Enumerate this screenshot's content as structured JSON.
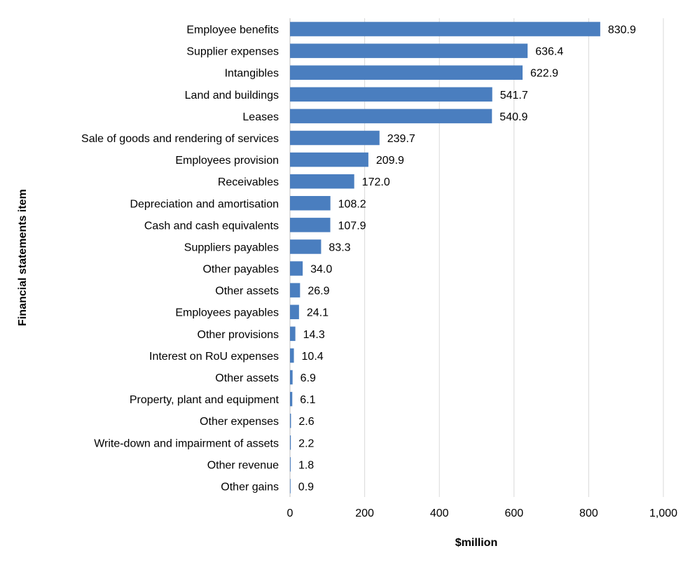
{
  "chart_data": {
    "type": "bar",
    "orientation": "horizontal",
    "title": "",
    "xlabel": "$million",
    "ylabel": "Financial statements item",
    "xlim": [
      0,
      1000
    ],
    "xticks": [
      0,
      200,
      400,
      600,
      800,
      1000
    ],
    "xtick_labels": [
      "0",
      "200",
      "400",
      "600",
      "800",
      "1,000"
    ],
    "grid": true,
    "bar_color": "#4a7ebf",
    "categories": [
      "Employee benefits",
      "Supplier expenses",
      "Intangibles",
      "Land and buildings",
      "Leases",
      "Sale of goods and rendering of services",
      "Employees provision",
      "Receivables",
      "Depreciation and amortisation",
      "Cash and cash equivalents",
      "Suppliers payables",
      "Other payables",
      "Other assets",
      "Employees payables",
      "Other provisions",
      "Interest on RoU expenses",
      "Other assets",
      "Property, plant and equipment",
      "Other expenses",
      "Write-down and impairment of assets",
      "Other revenue",
      "Other gains"
    ],
    "values": [
      830.9,
      636.4,
      622.9,
      541.7,
      540.9,
      239.7,
      209.9,
      172.0,
      108.2,
      107.9,
      83.3,
      34.0,
      26.9,
      24.1,
      14.3,
      10.4,
      6.9,
      6.1,
      2.6,
      2.2,
      1.8,
      0.9
    ],
    "value_labels": [
      "830.9",
      "636.4",
      "622.9",
      "541.7",
      "540.9",
      "239.7",
      "209.9",
      "172.0",
      "108.2",
      "107.9",
      "83.3",
      "34.0",
      "26.9",
      "24.1",
      "14.3",
      "10.4",
      "6.9",
      "6.1",
      "2.6",
      "2.2",
      "1.8",
      "0.9"
    ]
  }
}
